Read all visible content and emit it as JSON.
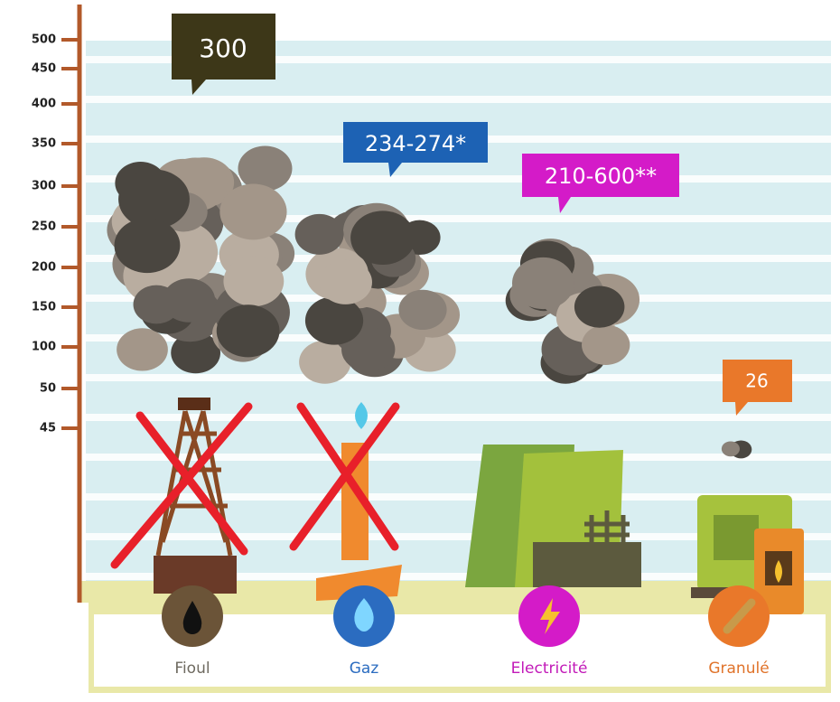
{
  "axis": {
    "ticks": [
      500,
      450,
      400,
      350,
      300,
      250,
      200,
      150,
      100,
      50,
      45
    ]
  },
  "items": [
    {
      "label": "Fioul",
      "callout": "300"
    },
    {
      "label": "Gaz",
      "callout": "234-274*"
    },
    {
      "label": "Electricité",
      "callout": "210-600**"
    },
    {
      "label": "Granulé",
      "callout": "26"
    }
  ]
}
